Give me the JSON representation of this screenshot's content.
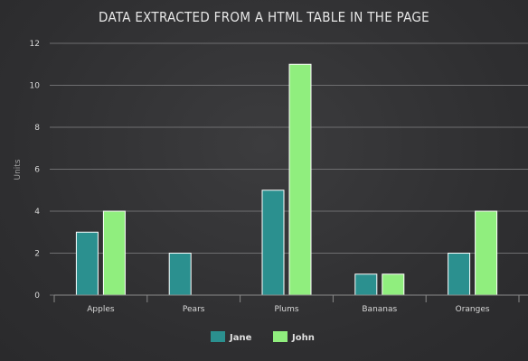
{
  "chart_data": {
    "type": "bar",
    "title": "DATA EXTRACTED FROM A HTML TABLE IN THE PAGE",
    "xlabel": "",
    "ylabel": "Units",
    "categories": [
      "Apples",
      "Pears",
      "Plums",
      "Bananas",
      "Oranges"
    ],
    "series": [
      {
        "name": "Jane",
        "values": [
          3,
          2,
          5,
          1,
          2
        ],
        "color": "#2b908f"
      },
      {
        "name": "John",
        "values": [
          4,
          0,
          11,
          1,
          4
        ],
        "color": "#90ee7e"
      }
    ],
    "ylim": [
      0,
      12
    ],
    "yticks": [
      0,
      2,
      4,
      6,
      8,
      10,
      12
    ],
    "grid": true,
    "legend": "bottom-center"
  }
}
